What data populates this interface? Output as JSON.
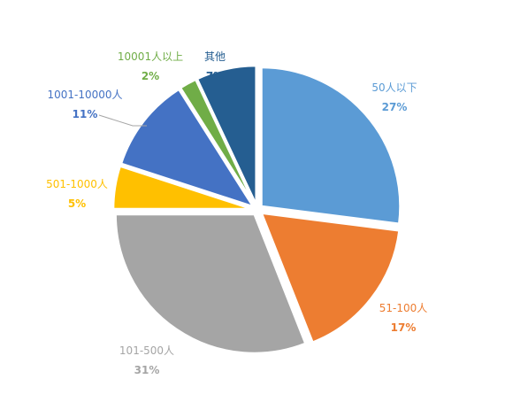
{
  "chart_data": {
    "type": "pie",
    "title": "",
    "slices": [
      {
        "label": "50人以下",
        "value": 27,
        "display": "27%",
        "color": "#5b9bd5"
      },
      {
        "label": "51-100人",
        "value": 17,
        "display": "17%",
        "color": "#ed7d31"
      },
      {
        "label": "101-500人",
        "value": 31,
        "display": "31%",
        "color": "#a5a5a5"
      },
      {
        "label": "501-1000人",
        "value": 5,
        "display": "5%",
        "color": "#ffc000"
      },
      {
        "label": "1001-10000人",
        "value": 11,
        "display": "11%",
        "color": "#4472c4"
      },
      {
        "label": "10001人以上",
        "value": 2,
        "display": "2%",
        "color": "#70ad47"
      },
      {
        "label": "其他",
        "value": 7,
        "display": "7%",
        "color": "#255e91"
      }
    ]
  }
}
